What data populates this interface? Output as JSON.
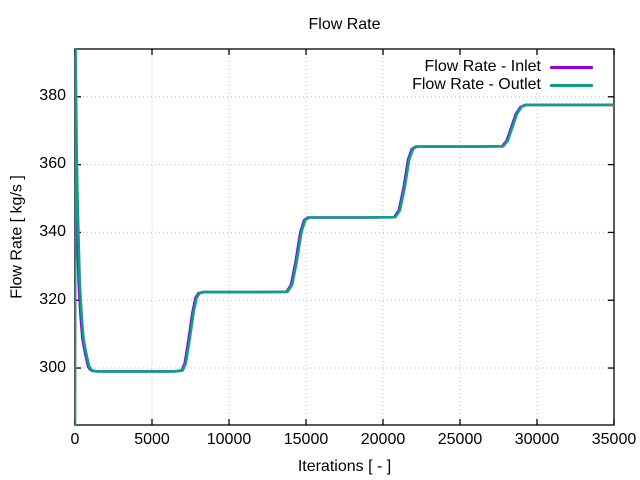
{
  "window": {
    "background": "#ffffff"
  },
  "chart_data": {
    "type": "line",
    "title": "Flow Rate",
    "xlabel": "Iterations [ - ]",
    "ylabel": "Flow Rate [ kg/s ]",
    "xlim": [
      0,
      35000
    ],
    "ylim": [
      283.2,
      394.1
    ],
    "xticks": [
      0,
      5000,
      10000,
      15000,
      20000,
      25000,
      30000,
      35000
    ],
    "yticks": [
      300,
      320,
      340,
      360,
      380
    ],
    "grid": "dotted",
    "grid_color": "#bdbdbd",
    "border_color": "#000000",
    "legend_position": "top-right-inside",
    "step_levels": [
      299.0,
      322.4,
      344.4,
      365.3,
      377.6
    ],
    "series": [
      {
        "name": "Flow Rate - Inlet",
        "color": "#9400d3",
        "points": [
          [
            0,
            280
          ],
          [
            30,
            396
          ],
          [
            70,
            380
          ],
          [
            120,
            362
          ],
          [
            170,
            349
          ],
          [
            220,
            340
          ],
          [
            270,
            331
          ],
          [
            310,
            325
          ],
          [
            370,
            320
          ],
          [
            450,
            314.5
          ],
          [
            560,
            308.5
          ],
          [
            700,
            305
          ],
          [
            820,
            302.5
          ],
          [
            920,
            300.5
          ],
          [
            1050,
            299.5
          ],
          [
            1250,
            299.1
          ],
          [
            1600,
            299.0
          ],
          [
            3000,
            299.0
          ],
          [
            5000,
            299.0
          ],
          [
            6500,
            299.0
          ],
          [
            7000,
            299.3
          ],
          [
            7200,
            301.5
          ],
          [
            7450,
            308.5
          ],
          [
            7700,
            316.5
          ],
          [
            7900,
            320.8
          ],
          [
            8100,
            322.1
          ],
          [
            8400,
            322.4
          ],
          [
            10000,
            322.4
          ],
          [
            12000,
            322.4
          ],
          [
            13800,
            322.5
          ],
          [
            14100,
            324.5
          ],
          [
            14400,
            331.5
          ],
          [
            14700,
            340.0
          ],
          [
            14950,
            343.6
          ],
          [
            15200,
            344.4
          ],
          [
            17000,
            344.4
          ],
          [
            19000,
            344.4
          ],
          [
            20800,
            344.5
          ],
          [
            21100,
            346.5
          ],
          [
            21400,
            353.0
          ],
          [
            21700,
            361.5
          ],
          [
            21950,
            364.6
          ],
          [
            22200,
            365.3
          ],
          [
            24000,
            365.3
          ],
          [
            26000,
            365.3
          ],
          [
            27800,
            365.4
          ],
          [
            28100,
            367.0
          ],
          [
            28400,
            371.0
          ],
          [
            28700,
            375.0
          ],
          [
            29000,
            377.0
          ],
          [
            29300,
            377.6
          ],
          [
            31000,
            377.6
          ],
          [
            33000,
            377.6
          ],
          [
            35000,
            377.6
          ]
        ]
      },
      {
        "name": "Flow Rate - Outlet",
        "color": "#0ba08a",
        "points": [
          [
            0,
            280
          ],
          [
            30,
            396
          ],
          [
            70,
            380
          ],
          [
            120,
            362
          ],
          [
            170,
            349
          ],
          [
            220,
            340
          ],
          [
            270,
            331
          ],
          [
            310,
            325
          ],
          [
            370,
            320
          ],
          [
            450,
            314.5
          ],
          [
            560,
            308.5
          ],
          [
            700,
            305
          ],
          [
            820,
            302.5
          ],
          [
            920,
            300.5
          ],
          [
            1050,
            299.5
          ],
          [
            1250,
            299.1
          ],
          [
            1600,
            299.0
          ],
          [
            3000,
            299.0
          ],
          [
            5000,
            299.0
          ],
          [
            6500,
            299.0
          ],
          [
            7000,
            299.3
          ],
          [
            7200,
            301.5
          ],
          [
            7450,
            308.5
          ],
          [
            7700,
            316.5
          ],
          [
            7900,
            320.8
          ],
          [
            8100,
            322.1
          ],
          [
            8400,
            322.4
          ],
          [
            10000,
            322.4
          ],
          [
            12000,
            322.4
          ],
          [
            13800,
            322.5
          ],
          [
            14100,
            324.5
          ],
          [
            14400,
            331.5
          ],
          [
            14700,
            340.0
          ],
          [
            14950,
            343.6
          ],
          [
            15200,
            344.4
          ],
          [
            17000,
            344.4
          ],
          [
            19000,
            344.4
          ],
          [
            20800,
            344.5
          ],
          [
            21100,
            346.5
          ],
          [
            21400,
            353.0
          ],
          [
            21700,
            361.5
          ],
          [
            21950,
            364.6
          ],
          [
            22200,
            365.3
          ],
          [
            24000,
            365.3
          ],
          [
            26000,
            365.3
          ],
          [
            27800,
            365.4
          ],
          [
            28100,
            367.0
          ],
          [
            28400,
            371.0
          ],
          [
            28700,
            375.0
          ],
          [
            29000,
            377.0
          ],
          [
            29300,
            377.6
          ],
          [
            31000,
            377.6
          ],
          [
            33000,
            377.6
          ],
          [
            35000,
            377.6
          ]
        ]
      }
    ]
  }
}
